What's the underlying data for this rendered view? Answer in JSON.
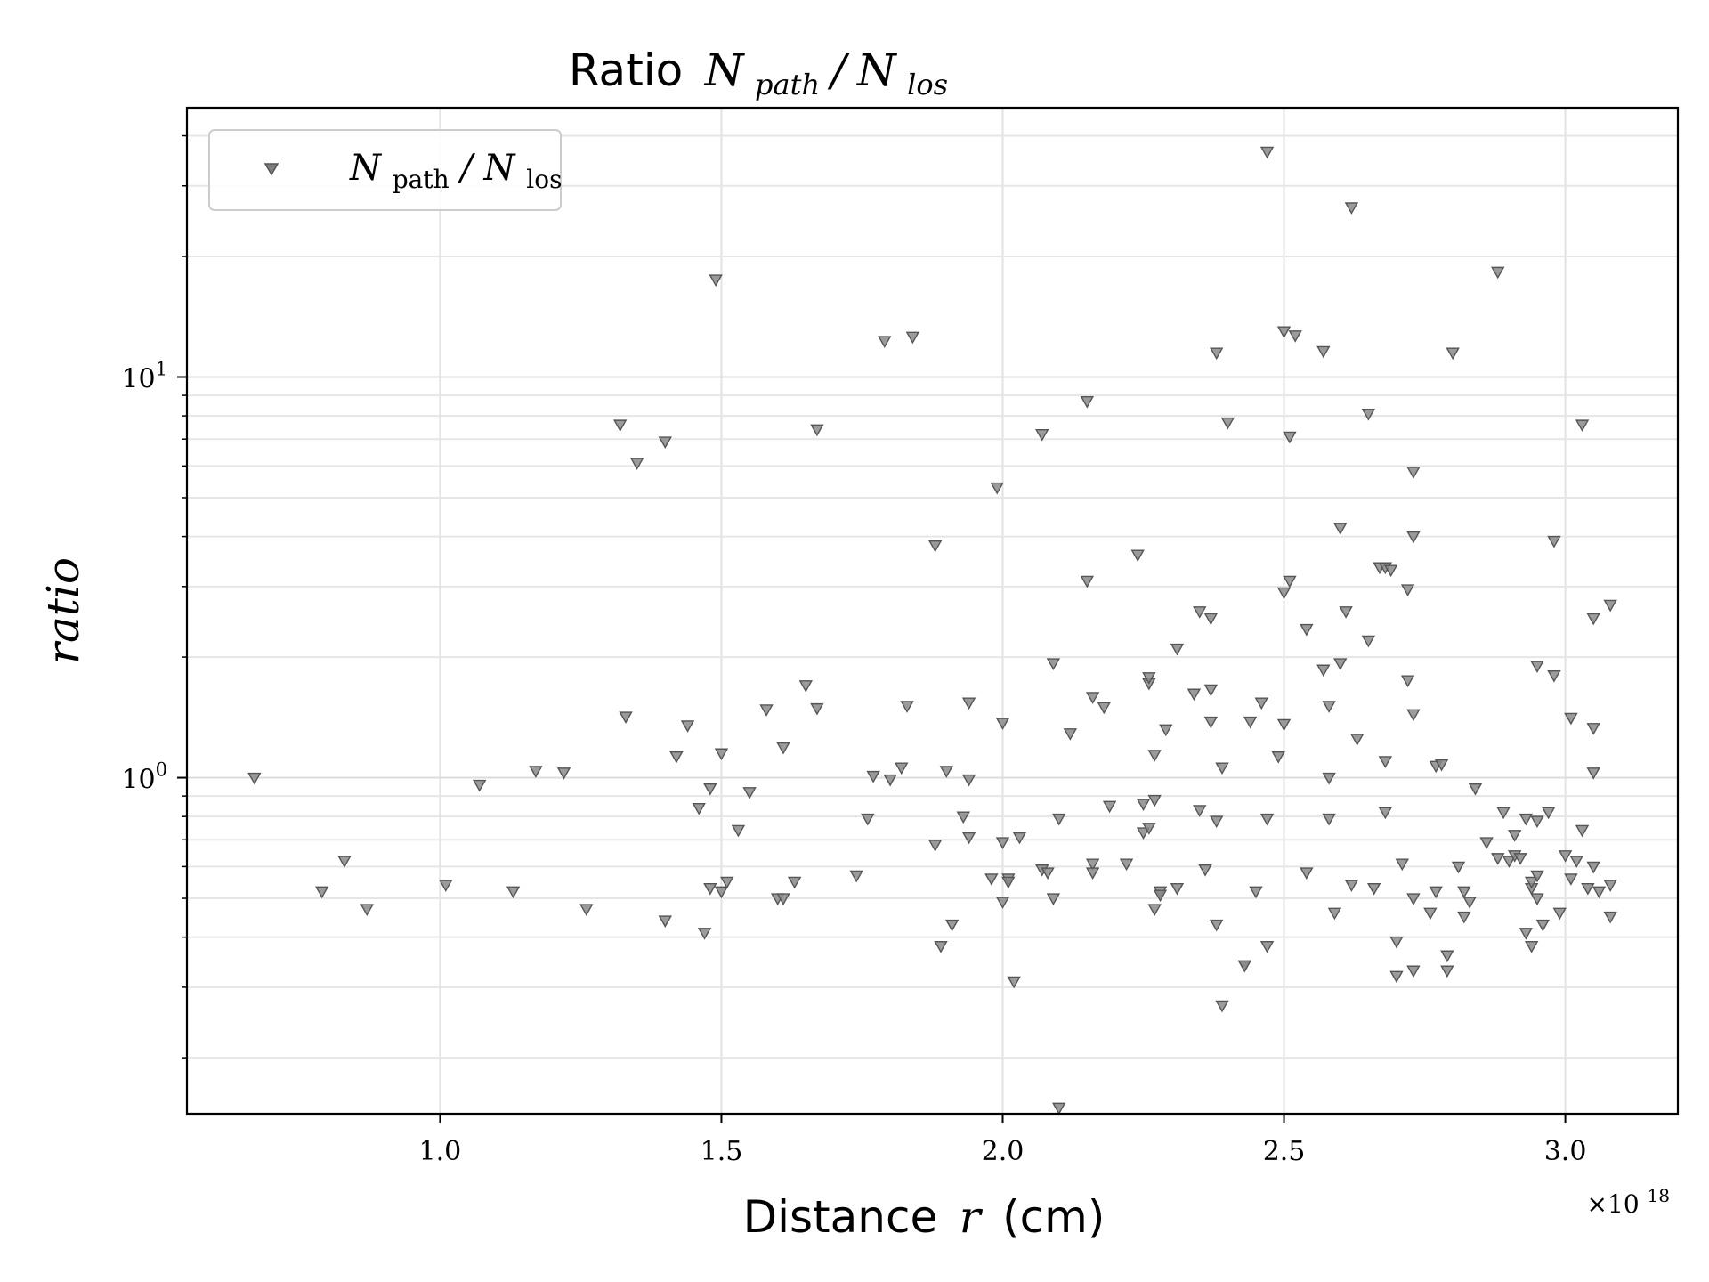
{
  "chart_data": {
    "type": "scatter",
    "title": {
      "prefix": "Ratio",
      "math_numerator": "N",
      "numerator_sub": "path",
      "slash": "/",
      "math_denominator": "N",
      "denominator_sub": "los"
    },
    "xlabel": {
      "prefix": "Distance",
      "math": "r",
      "suffix": "(cm)"
    },
    "ylabel": "ratio",
    "x_offset_label": {
      "base": "×10",
      "exp": "18"
    },
    "x_scale_exponent": 18,
    "y_scale": "log",
    "xlim": [
      0.55,
      3.2
    ],
    "ylim": [
      0.145,
      47
    ],
    "grid": true,
    "legend_position": "upper left",
    "marker": "triangle-down",
    "color": "#555555",
    "x_ticks": [
      {
        "value": 1.0,
        "label": "1.0"
      },
      {
        "value": 1.5,
        "label": "1.5"
      },
      {
        "value": 2.0,
        "label": "2.0"
      },
      {
        "value": 2.5,
        "label": "2.5"
      },
      {
        "value": 3.0,
        "label": "3.0"
      }
    ],
    "y_major_ticks": [
      {
        "value": 1,
        "base": "10",
        "exp": "0"
      },
      {
        "value": 10,
        "base": "10",
        "exp": "1"
      }
    ],
    "y_minor_ticks": [
      0.2,
      0.3,
      0.4,
      0.5,
      0.6,
      0.7,
      0.8,
      0.9,
      2,
      3,
      4,
      5,
      6,
      7,
      8,
      9,
      20,
      30,
      40
    ],
    "series": [
      {
        "name": {
          "math": "N",
          "sub1": "path",
          "slash": "/",
          "math2": "N",
          "sub2": "los"
        },
        "points": [
          [
            0.67,
            1.0
          ],
          [
            0.79,
            0.52
          ],
          [
            0.83,
            0.62
          ],
          [
            0.87,
            0.47
          ],
          [
            1.01,
            0.54
          ],
          [
            1.07,
            0.96
          ],
          [
            1.13,
            0.52
          ],
          [
            1.17,
            1.04
          ],
          [
            1.22,
            1.03
          ],
          [
            1.26,
            0.47
          ],
          [
            1.32,
            7.6
          ],
          [
            1.33,
            1.42
          ],
          [
            1.35,
            6.1
          ],
          [
            1.4,
            6.9
          ],
          [
            1.4,
            0.44
          ],
          [
            1.42,
            1.13
          ],
          [
            1.44,
            1.35
          ],
          [
            1.46,
            0.84
          ],
          [
            1.47,
            0.41
          ],
          [
            1.48,
            0.53
          ],
          [
            1.48,
            0.94
          ],
          [
            1.49,
            17.5
          ],
          [
            1.5,
            1.15
          ],
          [
            1.51,
            0.55
          ],
          [
            1.53,
            0.74
          ],
          [
            1.55,
            0.92
          ],
          [
            1.58,
            1.48
          ],
          [
            1.6,
            0.5
          ],
          [
            1.61,
            1.19
          ],
          [
            1.63,
            0.55
          ],
          [
            1.65,
            1.7
          ],
          [
            1.67,
            1.49
          ],
          [
            1.67,
            7.4
          ],
          [
            1.74,
            0.57
          ],
          [
            1.76,
            0.79
          ],
          [
            1.77,
            1.01
          ],
          [
            1.79,
            12.3
          ],
          [
            1.8,
            0.99
          ],
          [
            1.82,
            1.06
          ],
          [
            1.83,
            1.51
          ],
          [
            1.84,
            12.6
          ],
          [
            1.88,
            3.8
          ],
          [
            1.88,
            0.68
          ],
          [
            1.89,
            0.38
          ],
          [
            1.9,
            1.04
          ],
          [
            1.91,
            0.43
          ],
          [
            1.93,
            0.8
          ],
          [
            1.94,
            0.99
          ],
          [
            1.94,
            0.71
          ],
          [
            1.94,
            1.54
          ],
          [
            1.98,
            0.56
          ],
          [
            1.99,
            5.3
          ],
          [
            2.0,
            0.69
          ],
          [
            2.0,
            0.49
          ],
          [
            2.0,
            1.37
          ],
          [
            2.01,
            0.56
          ],
          [
            2.02,
            0.31
          ],
          [
            2.03,
            0.71
          ],
          [
            2.07,
            7.2
          ],
          [
            2.07,
            0.59
          ],
          [
            2.09,
            1.93
          ],
          [
            2.09,
            0.5
          ],
          [
            2.1,
            0.15
          ],
          [
            2.1,
            0.79
          ],
          [
            2.12,
            1.29
          ],
          [
            2.15,
            3.1
          ],
          [
            2.15,
            8.7
          ],
          [
            2.16,
            0.61
          ],
          [
            2.16,
            0.58
          ],
          [
            2.16,
            1.59
          ],
          [
            2.18,
            1.5
          ],
          [
            2.19,
            0.85
          ],
          [
            2.22,
            0.61
          ],
          [
            2.24,
            3.6
          ],
          [
            2.25,
            0.73
          ],
          [
            2.25,
            0.86
          ],
          [
            2.26,
            0.75
          ],
          [
            2.26,
            1.72
          ],
          [
            2.26,
            1.78
          ],
          [
            2.27,
            0.88
          ],
          [
            2.27,
            0.47
          ],
          [
            2.27,
            1.14
          ],
          [
            2.28,
            0.52
          ],
          [
            2.29,
            1.32
          ],
          [
            2.31,
            2.1
          ],
          [
            2.31,
            0.53
          ],
          [
            2.34,
            1.62
          ],
          [
            2.35,
            2.6
          ],
          [
            2.35,
            0.83
          ],
          [
            2.36,
            0.59
          ],
          [
            2.37,
            1.66
          ],
          [
            2.37,
            2.5
          ],
          [
            2.37,
            1.38
          ],
          [
            2.38,
            11.5
          ],
          [
            2.38,
            0.78
          ],
          [
            2.38,
            0.43
          ],
          [
            2.39,
            1.06
          ],
          [
            2.39,
            0.27
          ],
          [
            2.4,
            7.7
          ],
          [
            2.43,
            0.34
          ],
          [
            2.44,
            1.38
          ],
          [
            2.45,
            0.52
          ],
          [
            2.46,
            1.54
          ],
          [
            2.47,
            36.5
          ],
          [
            2.47,
            0.38
          ],
          [
            2.47,
            0.79
          ],
          [
            2.49,
            1.13
          ],
          [
            2.5,
            13.0
          ],
          [
            2.5,
            1.36
          ],
          [
            2.5,
            2.9
          ],
          [
            2.51,
            3.1
          ],
          [
            2.51,
            7.1
          ],
          [
            2.52,
            12.7
          ],
          [
            2.54,
            2.35
          ],
          [
            2.54,
            0.58
          ],
          [
            2.57,
            11.6
          ],
          [
            2.57,
            1.86
          ],
          [
            2.58,
            1.51
          ],
          [
            2.58,
            1.0
          ],
          [
            2.58,
            0.79
          ],
          [
            2.59,
            0.46
          ],
          [
            2.6,
            4.2
          ],
          [
            2.6,
            1.93
          ],
          [
            2.61,
            2.6
          ],
          [
            2.62,
            26.5
          ],
          [
            2.62,
            0.54
          ],
          [
            2.63,
            1.25
          ],
          [
            2.65,
            2.2
          ],
          [
            2.65,
            8.1
          ],
          [
            2.66,
            0.53
          ],
          [
            2.67,
            3.35
          ],
          [
            2.68,
            3.35
          ],
          [
            2.68,
            1.1
          ],
          [
            2.68,
            0.82
          ],
          [
            2.69,
            3.3
          ],
          [
            2.7,
            0.32
          ],
          [
            2.7,
            0.39
          ],
          [
            2.71,
            0.61
          ],
          [
            2.72,
            1.75
          ],
          [
            2.72,
            2.95
          ],
          [
            2.73,
            4.0
          ],
          [
            2.73,
            1.44
          ],
          [
            2.73,
            0.33
          ],
          [
            2.73,
            5.8
          ],
          [
            2.73,
            0.5
          ],
          [
            2.76,
            0.46
          ],
          [
            2.77,
            1.07
          ],
          [
            2.77,
            0.52
          ],
          [
            2.78,
            1.08
          ],
          [
            2.79,
            0.33
          ],
          [
            2.79,
            0.36
          ],
          [
            2.8,
            11.5
          ],
          [
            2.81,
            0.6
          ],
          [
            2.82,
            0.52
          ],
          [
            2.82,
            0.45
          ],
          [
            2.83,
            0.49
          ],
          [
            2.84,
            0.94
          ],
          [
            2.86,
            0.69
          ],
          [
            2.88,
            18.3
          ],
          [
            2.89,
            0.82
          ],
          [
            2.9,
            0.62
          ],
          [
            2.91,
            0.72
          ],
          [
            2.91,
            0.64
          ],
          [
            2.92,
            0.63
          ],
          [
            2.93,
            0.79
          ],
          [
            2.93,
            0.41
          ],
          [
            2.94,
            0.38
          ],
          [
            2.94,
            0.53
          ],
          [
            2.94,
            0.55
          ],
          [
            2.95,
            0.57
          ],
          [
            2.95,
            0.5
          ],
          [
            2.95,
            0.78
          ],
          [
            2.96,
            0.43
          ],
          [
            2.97,
            0.82
          ],
          [
            2.98,
            1.8
          ],
          [
            2.98,
            3.9
          ],
          [
            2.99,
            0.46
          ],
          [
            3.0,
            0.64
          ],
          [
            3.01,
            1.41
          ],
          [
            3.01,
            0.56
          ],
          [
            3.02,
            0.62
          ],
          [
            3.03,
            7.6
          ],
          [
            3.03,
            0.74
          ],
          [
            3.04,
            0.53
          ],
          [
            3.05,
            1.03
          ],
          [
            3.05,
            0.6
          ],
          [
            3.05,
            2.5
          ],
          [
            3.05,
            1.33
          ],
          [
            3.06,
            0.52
          ],
          [
            3.08,
            2.7
          ],
          [
            3.08,
            0.54
          ],
          [
            3.08,
            0.45
          ],
          [
            2.88,
            0.63
          ],
          [
            2.95,
            1.9
          ],
          [
            2.01,
            0.55
          ],
          [
            1.61,
            0.5
          ],
          [
            2.28,
            0.51
          ],
          [
            2.43,
            0.34
          ],
          [
            1.5,
            0.52
          ],
          [
            2.08,
            0.58
          ]
        ]
      }
    ]
  }
}
